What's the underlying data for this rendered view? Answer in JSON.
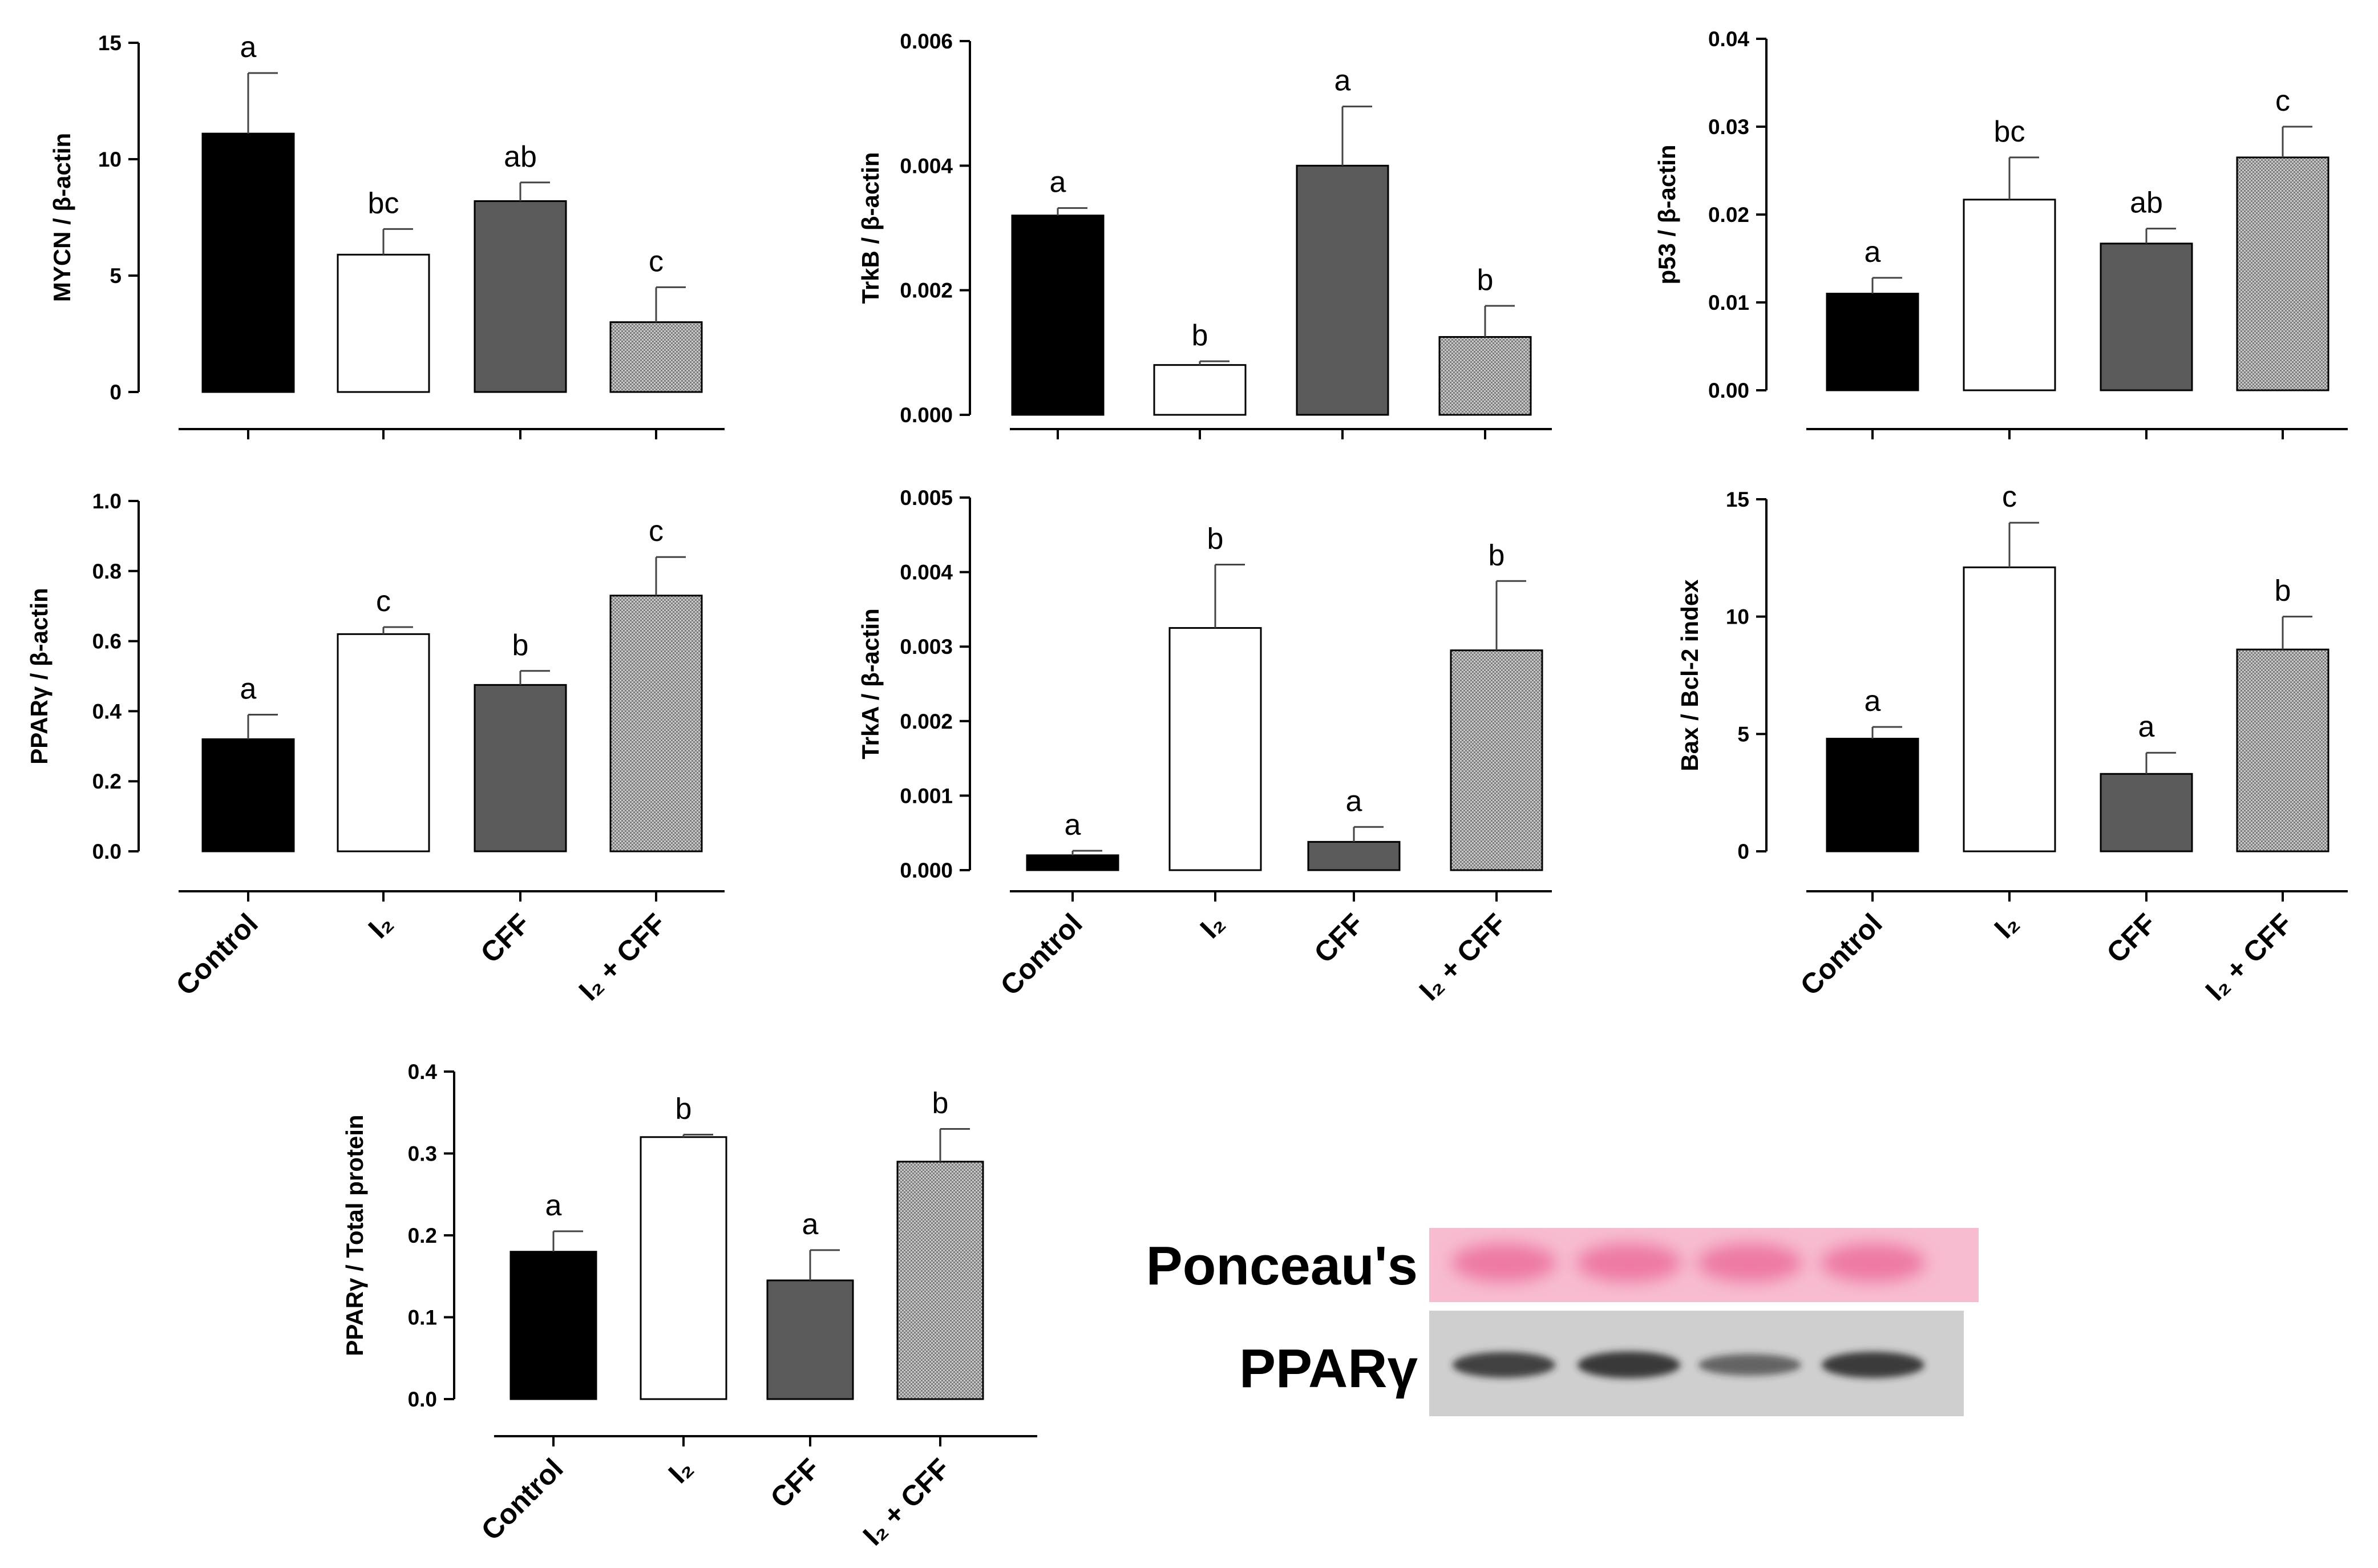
{
  "colors": {
    "control": "#000000",
    "i2": "#ffffff",
    "cff": "#5a5a5a",
    "i2_cff_pattern": "#9a9a9a",
    "ponceau_bg": "#f7bcd0",
    "ponceau_band": "#ec6f9c",
    "western_bg": "#cfcfcf",
    "western_band": "#2a2a2a"
  },
  "categories": [
    "Control",
    "I₂",
    "CFF",
    "I₂ + CFF"
  ],
  "chart_data": [
    {
      "id": "mycn",
      "type": "bar",
      "ylabel": "MYCN / β-actin",
      "ylim": [
        0,
        15
      ],
      "yticks": [
        "0",
        "5",
        "10",
        "15"
      ],
      "values": [
        11.1,
        5.9,
        8.2,
        3.0
      ],
      "errors": [
        2.6,
        1.1,
        0.8,
        1.5
      ],
      "letters": [
        "a",
        "bc",
        "ab",
        "c"
      ]
    },
    {
      "id": "trkb",
      "type": "bar",
      "ylabel": "TrkB / β-actin",
      "ylim": [
        0,
        0.006
      ],
      "yticks": [
        "0.000",
        "0.002",
        "0.004",
        "0.006"
      ],
      "values": [
        0.0032,
        0.0008,
        0.004,
        0.00125
      ],
      "errors": [
        0.00012,
        6e-05,
        0.00095,
        0.0005
      ],
      "letters": [
        "a",
        "b",
        "a",
        "b"
      ]
    },
    {
      "id": "p53",
      "type": "bar",
      "ylabel": "p53 / β-actin",
      "ylim": [
        0,
        0.04
      ],
      "yticks": [
        "0.00",
        "0.01",
        "0.02",
        "0.03",
        "0.04"
      ],
      "values": [
        0.011,
        0.0217,
        0.0167,
        0.0265
      ],
      "errors": [
        0.0018,
        0.0048,
        0.0017,
        0.0035
      ],
      "letters": [
        "a",
        "bc",
        "ab",
        "c"
      ]
    },
    {
      "id": "ppar_actin",
      "type": "bar",
      "ylabel": "PPARγ / β-actin",
      "ylim": [
        0,
        1.0
      ],
      "yticks": [
        "0.0",
        "0.2",
        "0.4",
        "0.6",
        "0.8",
        "1.0"
      ],
      "values": [
        0.32,
        0.62,
        0.475,
        0.73
      ],
      "errors": [
        0.07,
        0.02,
        0.04,
        0.11
      ],
      "letters": [
        "a",
        "c",
        "b",
        "c"
      ]
    },
    {
      "id": "trka",
      "type": "bar",
      "ylabel": "TrkA / β-actin",
      "ylim": [
        0,
        0.005
      ],
      "yticks": [
        "0.000",
        "0.001",
        "0.002",
        "0.003",
        "0.004",
        "0.005"
      ],
      "values": [
        0.0002,
        0.00325,
        0.00038,
        0.00295
      ],
      "errors": [
        6e-05,
        0.00085,
        0.0002,
        0.00093
      ],
      "letters": [
        "a",
        "b",
        "a",
        "b"
      ]
    },
    {
      "id": "bax",
      "type": "bar",
      "ylabel": "Bax / Bcl-2 index",
      "ylim": [
        0,
        15
      ],
      "yticks": [
        "0",
        "5",
        "10",
        "15"
      ],
      "values": [
        4.8,
        12.1,
        3.3,
        8.6
      ],
      "errors": [
        0.5,
        1.9,
        0.9,
        1.4
      ],
      "letters": [
        "a",
        "c",
        "a",
        "b"
      ]
    },
    {
      "id": "ppar_total",
      "type": "bar",
      "ylabel": "PPARγ / Total protein",
      "ylim": [
        0,
        0.4
      ],
      "yticks": [
        "0.0",
        "0.1",
        "0.2",
        "0.3",
        "0.4"
      ],
      "values": [
        0.18,
        0.32,
        0.145,
        0.29
      ],
      "errors": [
        0.025,
        0.003,
        0.037,
        0.04
      ],
      "letters": [
        "a",
        "b",
        "a",
        "b"
      ]
    }
  ],
  "blot": {
    "ponceau_label": "Ponceau's",
    "pparg_label": "PPARγ",
    "pparg_band_intensity": [
      0.85,
      0.95,
      0.5,
      0.9
    ]
  }
}
